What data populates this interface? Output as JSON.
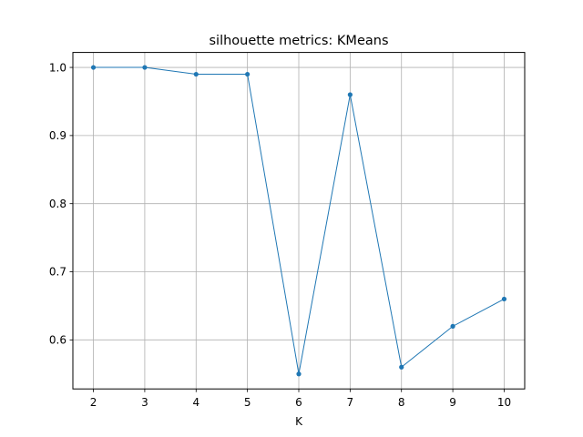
{
  "chart_data": {
    "type": "line",
    "title": "silhouette metrics: KMeans",
    "xlabel": "K",
    "ylabel": "",
    "x": [
      2,
      3,
      4,
      5,
      6,
      7,
      8,
      9,
      10
    ],
    "series": [
      {
        "values": [
          1.0,
          1.0,
          0.99,
          0.99,
          0.55,
          0.96,
          0.56,
          0.62,
          0.66
        ],
        "color": "#1f77b4"
      }
    ],
    "xticks": [
      "2",
      "3",
      "4",
      "5",
      "6",
      "7",
      "8",
      "9",
      "10"
    ],
    "yticks": [
      "0.6",
      "0.7",
      "0.8",
      "0.9",
      "1.0"
    ],
    "xlim": [
      1.6,
      10.4
    ],
    "ylim": [
      0.528,
      1.022
    ],
    "grid": true,
    "marker": "circle"
  }
}
